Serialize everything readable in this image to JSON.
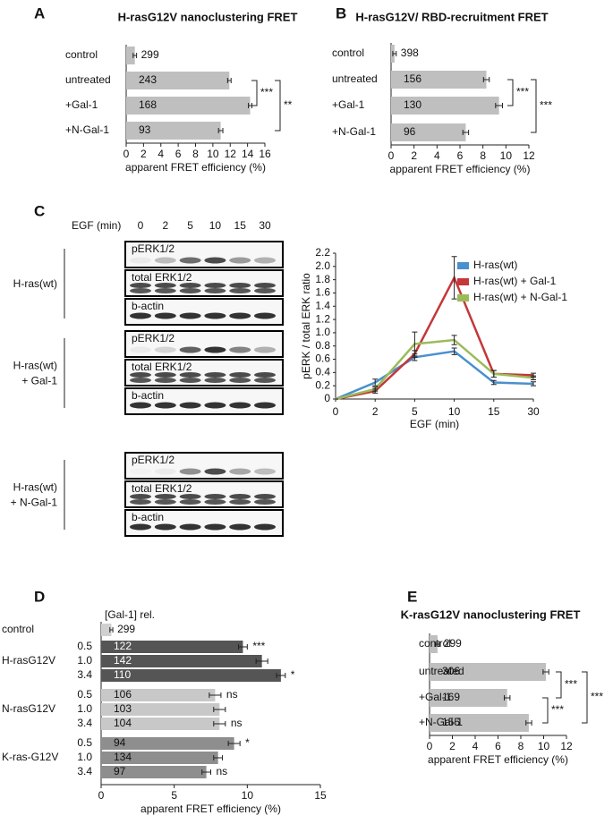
{
  "chart_data": [
    {
      "type": "hbar",
      "panel": "A",
      "title": "H-rasG12V nanoclustering FRET",
      "xlabel": "apparent FRET efficiency (%)",
      "categories": [
        "control",
        "untreated",
        "+Gal-1",
        "+N-Gal-1"
      ],
      "values": [
        1.0,
        11.9,
        14.3,
        10.9
      ],
      "errors": [
        0.2,
        0.2,
        0.2,
        0.25
      ],
      "n": [
        299,
        243,
        168,
        93
      ],
      "color": "#bfbfbf",
      "xlim": [
        0,
        16
      ],
      "xticks": [
        0,
        2,
        4,
        6,
        8,
        10,
        12,
        14,
        16
      ],
      "significance": [
        {
          "label": "***",
          "between": [
            "untreated",
            "+Gal-1"
          ]
        },
        {
          "label": "**",
          "between": [
            "untreated",
            "+N-Gal-1"
          ]
        }
      ]
    },
    {
      "type": "hbar",
      "panel": "B",
      "title": "H-rasG12V/ RBD-recruitment FRET",
      "xlabel": "apparent FRET efficiency (%)",
      "categories": [
        "control",
        "untreated",
        "+Gal-1",
        "+N-Gal-1"
      ],
      "values": [
        0.3,
        8.3,
        9.4,
        6.5
      ],
      "errors": [
        0.15,
        0.25,
        0.3,
        0.25
      ],
      "n": [
        398,
        156,
        130,
        96
      ],
      "color": "#bfbfbf",
      "xlim": [
        0,
        12
      ],
      "xticks": [
        0,
        2,
        4,
        6,
        8,
        10,
        12
      ],
      "significance": [
        {
          "label": "***",
          "between": [
            "untreated",
            "+Gal-1"
          ]
        },
        {
          "label": "***",
          "between": [
            "untreated",
            "+N-Gal-1"
          ]
        }
      ]
    },
    {
      "type": "line",
      "xlabel": "EGF (min)",
      "ylabel": "pERK / total ERK ratio",
      "categories": [
        "0",
        "2",
        "5",
        "10",
        "15",
        "30"
      ],
      "ylim": [
        0,
        2.2
      ],
      "yticks": [
        0,
        0.2,
        0.4,
        0.6,
        0.8,
        {
          "value": 1,
          "label": "1.0"
        },
        1.2,
        1.4,
        1.6,
        1.8,
        {
          "value": 2,
          "label": "2.0"
        },
        2.2
      ],
      "legend": "upper right",
      "series": [
        {
          "name": "H-ras(wt)",
          "color": "#4a90cf",
          "values": [
            0,
            0.25,
            0.63,
            0.72,
            0.25,
            0.23
          ],
          "errors": [
            0,
            0.05,
            0.05,
            0.05,
            0.03,
            0.03
          ]
        },
        {
          "name": "H-ras(wt) + Gal-1",
          "color": "#c4373a",
          "values": [
            0,
            0.12,
            0.68,
            1.83,
            0.38,
            0.36
          ],
          "errors": [
            0,
            0.03,
            0.05,
            0.32,
            0.05,
            0.03
          ]
        },
        {
          "name": "H-ras(wt) + N-Gal-1",
          "color": "#9bbb59",
          "values": [
            0,
            0.15,
            0.83,
            0.89,
            0.38,
            0.32
          ],
          "errors": [
            0,
            0.03,
            0.18,
            0.07,
            0.05,
            0.03
          ]
        }
      ]
    },
    {
      "type": "hbar",
      "panel": "D",
      "header": "[Gal-1] rel.",
      "xlabel": "apparent FRET efficiency (%)",
      "categories": [
        "control",
        "0.5",
        "1.0",
        "3.4",
        "0.5",
        "1.0",
        "3.4",
        "0.5",
        "1.0",
        "3.4"
      ],
      "groups": [
        "H-rasG12V",
        "N-rasG12V",
        "K-ras-G12V"
      ],
      "values": [
        0.7,
        9.7,
        11.0,
        12.3,
        7.8,
        8.1,
        8.1,
        9.1,
        8.0,
        7.2
      ],
      "errors": [
        0.1,
        0.3,
        0.4,
        0.3,
        0.4,
        0.4,
        0.4,
        0.4,
        0.3,
        0.3
      ],
      "n": [
        299,
        122,
        142,
        110,
        106,
        103,
        104,
        94,
        134,
        97
      ],
      "annotations": [
        null,
        "***",
        null,
        "*",
        "ns",
        null,
        "ns",
        "*",
        null,
        "ns"
      ],
      "colors": [
        "#d0d0d0",
        "#555555",
        "#555555",
        "#555555",
        "#c8c8c8",
        "#c8c8c8",
        "#c8c8c8",
        "#8e8e8e",
        "#8e8e8e",
        "#8e8e8e"
      ],
      "xlim": [
        0,
        15
      ],
      "xticks": [
        0,
        5,
        10,
        15
      ]
    },
    {
      "type": "hbar",
      "panel": "E",
      "title": "K-rasG12V nanoclustering FRET",
      "xlabel": "apparent FRET efficiency (%)",
      "categories": [
        "control",
        "untreated",
        "+Gal-1",
        "+N-Gal-1"
      ],
      "values": [
        0.7,
        10.2,
        6.8,
        8.7
      ],
      "errors": [
        0.15,
        0.25,
        0.25,
        0.25
      ],
      "n": [
        299,
        306,
        169,
        155
      ],
      "color": "#bfbfbf",
      "xlim": [
        0,
        12
      ],
      "xticks": [
        0,
        2,
        4,
        6,
        8,
        10,
        12
      ],
      "significance": [
        {
          "label": "***",
          "between": [
            "untreated",
            "+Gal-1"
          ]
        },
        {
          "label": "***",
          "between": [
            "+Gal-1",
            "+N-Gal-1"
          ]
        },
        {
          "label": "***",
          "between": [
            "untreated",
            "+N-Gal-1"
          ]
        }
      ]
    }
  ],
  "blot": {
    "panel": "C",
    "time_label": "EGF (min)",
    "times": [
      "0",
      "2",
      "5",
      "10",
      "15",
      "30"
    ],
    "rows": [
      "pERK1/2",
      "total ERK1/2",
      "b-actin"
    ],
    "groups": [
      [
        "H-ras(wt)"
      ],
      [
        "H-ras(wt)",
        "+ Gal-1"
      ],
      [
        "H-ras(wt)",
        "+ N-Gal-1"
      ]
    ]
  }
}
